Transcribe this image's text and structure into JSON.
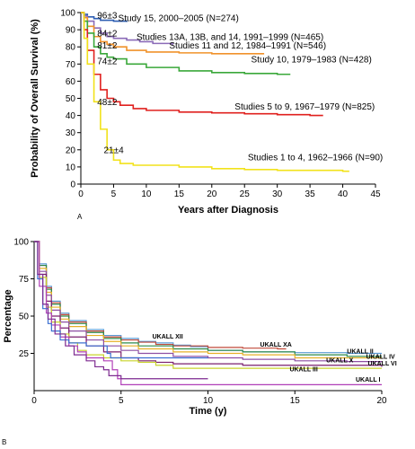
{
  "panels": {
    "a_label": "A",
    "b_label": "B"
  },
  "chart_data": [
    {
      "type": "line",
      "xlabel": "Years after Diagnosis",
      "ylabel": "Probability of Overall Survival (%)",
      "xlim": [
        0,
        45
      ],
      "ylim": [
        0,
        100
      ],
      "xticks": [
        0,
        5,
        10,
        15,
        20,
        25,
        30,
        35,
        40,
        45
      ],
      "yticks": [
        0,
        10,
        20,
        30,
        40,
        50,
        60,
        70,
        80,
        90,
        100
      ],
      "series": [
        {
          "name": "Study 15, 2000–2005 (N=274)",
          "color": "#2f5fb3",
          "label_x": 5.7,
          "label_y": 95,
          "points": [
            [
              0,
              100
            ],
            [
              0.5,
              99
            ],
            [
              1,
              97.5
            ],
            [
              2,
              96.5
            ],
            [
              3,
              95.5
            ],
            [
              5,
              95
            ],
            [
              7,
              94.5
            ]
          ]
        },
        {
          "name": "Studies 13A, 13B, and 14, 1991–1999 (N=465)",
          "color": "#8b6bb8",
          "label_x": 8.5,
          "label_y": 84,
          "points": [
            [
              0,
              100
            ],
            [
              0.5,
              98
            ],
            [
              1,
              95
            ],
            [
              2,
              91
            ],
            [
              3,
              88
            ],
            [
              4,
              86
            ],
            [
              5,
              85
            ],
            [
              7,
              84
            ],
            [
              9,
              83
            ],
            [
              11,
              82
            ],
            [
              14,
              81
            ]
          ]
        },
        {
          "name": "Studies 11 and 12, 1984–1991 (N=546)",
          "color": "#f0922b",
          "label_x": 13.5,
          "label_y": 79,
          "points": [
            [
              0,
              100
            ],
            [
              0.5,
              97
            ],
            [
              1,
              92
            ],
            [
              2,
              86
            ],
            [
              3,
              83
            ],
            [
              4,
              81.5
            ],
            [
              5,
              80
            ],
            [
              7,
              78
            ],
            [
              10,
              77
            ],
            [
              15,
              76.5
            ],
            [
              20,
              76
            ],
            [
              25,
              76
            ],
            [
              28,
              76
            ]
          ]
        },
        {
          "name": "Study 10, 1979–1983 (N=428)",
          "color": "#3aa83a",
          "label_x": 26,
          "label_y": 71,
          "points": [
            [
              0,
              100
            ],
            [
              0.5,
              95
            ],
            [
              1,
              88
            ],
            [
              2,
              80
            ],
            [
              3,
              76
            ],
            [
              4,
              74
            ],
            [
              5,
              73
            ],
            [
              7,
              70
            ],
            [
              10,
              68
            ],
            [
              15,
              66
            ],
            [
              20,
              65
            ],
            [
              25,
              64.5
            ],
            [
              30,
              64
            ],
            [
              32,
              64
            ]
          ]
        },
        {
          "name": "Studies 5 to 9, 1967–1979 (N=825)",
          "color": "#e0201e",
          "label_x": 23.5,
          "label_y": 43.5,
          "points": [
            [
              0,
              100
            ],
            [
              0.5,
              90
            ],
            [
              1,
              78
            ],
            [
              2,
              64
            ],
            [
              3,
              55
            ],
            [
              4,
              50
            ],
            [
              5,
              48
            ],
            [
              6,
              46
            ],
            [
              8,
              44
            ],
            [
              10,
              43
            ],
            [
              15,
              42
            ],
            [
              20,
              41.5
            ],
            [
              25,
              41
            ],
            [
              30,
              40.5
            ],
            [
              35,
              40
            ],
            [
              37,
              40
            ]
          ]
        },
        {
          "name": "Studies 1 to 4, 1962–1966 (N=90)",
          "color": "#f2e21b",
          "label_x": 25.5,
          "label_y": 14,
          "points": [
            [
              0,
              100
            ],
            [
              0.5,
              85
            ],
            [
              1,
              70
            ],
            [
              2,
              48
            ],
            [
              3,
              32
            ],
            [
              4,
              20
            ],
            [
              5,
              14
            ],
            [
              6,
              12
            ],
            [
              8,
              11
            ],
            [
              10,
              11
            ],
            [
              15,
              10
            ],
            [
              20,
              9
            ],
            [
              25,
              8.5
            ],
            [
              30,
              8
            ],
            [
              35,
              8
            ],
            [
              40,
              7.5
            ],
            [
              41,
              7.5
            ]
          ]
        }
      ],
      "annotations": [
        {
          "text": "96±3",
          "x": 2.5,
          "y": 96.5
        },
        {
          "text": "84±2",
          "x": 2.5,
          "y": 86
        },
        {
          "text": "81±2",
          "x": 2.5,
          "y": 79
        },
        {
          "text": "74±2",
          "x": 2.5,
          "y": 70
        },
        {
          "text": "48±2",
          "x": 2.5,
          "y": 46
        },
        {
          "text": "21±4",
          "x": 3.5,
          "y": 18
        }
      ]
    },
    {
      "type": "line",
      "xlabel": "Time (y)",
      "ylabel": "Percentage",
      "xlim": [
        0,
        20
      ],
      "ylim": [
        0,
        100
      ],
      "xticks": [
        0,
        5,
        10,
        15,
        20
      ],
      "yticks": [
        25,
        50,
        75,
        100
      ],
      "series": [
        {
          "name": "UKALL XII",
          "color": "#5b9bd5",
          "label_x": 6.8,
          "label_y": 35,
          "points": [
            [
              0,
              100
            ],
            [
              0.3,
              85
            ],
            [
              0.7,
              70
            ],
            [
              1,
              60
            ],
            [
              1.5,
              52
            ],
            [
              2,
              47
            ],
            [
              3,
              41
            ],
            [
              4,
              37
            ],
            [
              5,
              35
            ],
            [
              6,
              33
            ],
            [
              7,
              32
            ],
            [
              8,
              30.5
            ],
            [
              9,
              29.5
            ],
            [
              10,
              27
            ],
            [
              12,
              26
            ],
            [
              15,
              25.5
            ],
            [
              18,
              25
            ],
            [
              20,
              25
            ]
          ]
        },
        {
          "name": "UKALL XA",
          "color": "#c04a3a",
          "label_x": 13,
          "label_y": 29.5,
          "points": [
            [
              0,
              100
            ],
            [
              0.3,
              84
            ],
            [
              0.7,
              69
            ],
            [
              1,
              59
            ],
            [
              1.5,
              51
            ],
            [
              2,
              46
            ],
            [
              3,
              40
            ],
            [
              4,
              36
            ],
            [
              5,
              34
            ],
            [
              6,
              32.5
            ],
            [
              7,
              31
            ],
            [
              8,
              30
            ],
            [
              10,
              29
            ],
            [
              12,
              28.5
            ],
            [
              14,
              28
            ],
            [
              14.5,
              28
            ]
          ]
        },
        {
          "name": "UKALL II",
          "color": "#2e8a4a",
          "label_x": 18,
          "label_y": 25,
          "points": [
            [
              0,
              100
            ],
            [
              0.3,
              84
            ],
            [
              0.7,
              68
            ],
            [
              1,
              58
            ],
            [
              1.5,
              50
            ],
            [
              2,
              45
            ],
            [
              3,
              39
            ],
            [
              4,
              35
            ],
            [
              5,
              32
            ],
            [
              6,
              30
            ],
            [
              8,
              28
            ],
            [
              10,
              27
            ],
            [
              12,
              26
            ],
            [
              15,
              24
            ],
            [
              18,
              23
            ],
            [
              20,
              23
            ]
          ]
        },
        {
          "name": "UKALL IV",
          "color": "#e6b028",
          "label_x": 19.1,
          "label_y": 21.5,
          "points": [
            [
              0,
              100
            ],
            [
              0.3,
              82
            ],
            [
              0.7,
              66
            ],
            [
              1,
              56
            ],
            [
              1.5,
              48
            ],
            [
              2,
              43
            ],
            [
              3,
              37
            ],
            [
              4,
              33
            ],
            [
              5,
              30
            ],
            [
              6,
              28
            ],
            [
              8,
              26
            ],
            [
              10,
              25
            ],
            [
              12,
              24
            ],
            [
              15,
              22
            ],
            [
              20,
              22
            ]
          ]
        },
        {
          "name": "UKALL X",
          "color": "#8e4fa3",
          "label_x": 16.8,
          "label_y": 19,
          "points": [
            [
              0,
              100
            ],
            [
              0.3,
              80
            ],
            [
              0.7,
              64
            ],
            [
              1,
              54
            ],
            [
              1.5,
              46
            ],
            [
              2,
              40
            ],
            [
              3,
              34
            ],
            [
              4,
              30
            ],
            [
              5,
              27
            ],
            [
              6,
              25
            ],
            [
              8,
              23
            ],
            [
              10,
              22
            ],
            [
              12,
              21
            ],
            [
              15,
              20
            ],
            [
              18,
              19.5
            ],
            [
              20,
              19.5
            ]
          ]
        },
        {
          "name": "UKALL VI",
          "color": "#7a1f6e",
          "label_x": 19.2,
          "label_y": 17,
          "points": [
            [
              0,
              100
            ],
            [
              0.3,
              78
            ],
            [
              0.7,
              60
            ],
            [
              1,
              50
            ],
            [
              1.5,
              42
            ],
            [
              2,
              36
            ],
            [
              3,
              30
            ],
            [
              4,
              26
            ],
            [
              5,
              22
            ],
            [
              6,
              20
            ],
            [
              7,
              19
            ],
            [
              8,
              18
            ],
            [
              10,
              18
            ],
            [
              12,
              17
            ],
            [
              15,
              17
            ],
            [
              20,
              16
            ]
          ]
        },
        {
          "name": "UKALL III",
          "color": "#c8d32a",
          "label_x": 14.7,
          "label_y": 13,
          "points": [
            [
              0,
              100
            ],
            [
              0.3,
              76
            ],
            [
              0.7,
              56
            ],
            [
              1,
              46
            ],
            [
              1.5,
              38
            ],
            [
              2,
              32
            ],
            [
              2.5,
              27
            ],
            [
              3,
              24
            ],
            [
              4,
              22
            ],
            [
              5,
              20
            ],
            [
              6,
              19
            ],
            [
              7,
              17
            ],
            [
              8,
              15
            ],
            [
              10,
              15
            ],
            [
              15,
              15
            ],
            [
              20,
              15
            ]
          ]
        },
        {
          "name": "UKALL I",
          "color": "#b03fb8",
          "label_x": 18.5,
          "label_y": 6,
          "points": [
            [
              0,
              100
            ],
            [
              0.3,
              70
            ],
            [
              0.7,
              52
            ],
            [
              1,
              44
            ],
            [
              1.5,
              36
            ],
            [
              2,
              30
            ],
            [
              2.5,
              26
            ],
            [
              3,
              22
            ],
            [
              4,
              20
            ],
            [
              4.5,
              14
            ],
            [
              4.8,
              8
            ],
            [
              5,
              4
            ],
            [
              10,
              4
            ],
            [
              15,
              4
            ],
            [
              20,
              4
            ]
          ]
        },
        {
          "name": "",
          "color": "#3b6fd1",
          "label_x": null,
          "label_y": null,
          "points": [
            [
              0,
              100
            ],
            [
              0.2,
              75
            ],
            [
              0.5,
              55
            ],
            [
              0.8,
              45
            ],
            [
              1,
              40
            ],
            [
              1.5,
              34
            ],
            [
              2,
              32
            ],
            [
              3,
              30
            ],
            [
              4,
              30
            ],
            [
              4.2,
              25
            ],
            [
              4.4,
              22
            ],
            [
              5,
              22
            ],
            [
              6,
              22
            ],
            [
              7,
              22
            ],
            [
              10,
              22
            ]
          ]
        },
        {
          "name": "",
          "color": "#7d2a90",
          "label_x": null,
          "label_y": null,
          "points": [
            [
              0,
              100
            ],
            [
              0.2,
              78
            ],
            [
              0.5,
              58
            ],
            [
              0.8,
              48
            ],
            [
              1.2,
              38
            ],
            [
              1.8,
              30
            ],
            [
              2.3,
              24
            ],
            [
              3,
              20
            ],
            [
              3.5,
              16
            ],
            [
              4,
              14
            ],
            [
              4.3,
              10
            ],
            [
              5,
              8
            ],
            [
              8,
              8
            ],
            [
              10,
              8
            ]
          ]
        }
      ]
    }
  ]
}
